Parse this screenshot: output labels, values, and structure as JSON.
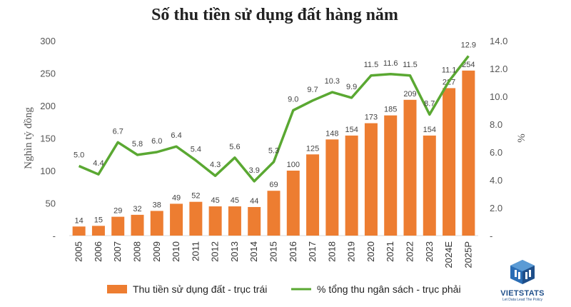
{
  "title": "Số thu tiền sử dụng đất hàng năm",
  "brand": {
    "name": "VIETSTATS",
    "tagline": "Let Data Lead The Policy",
    "color": "#1f4f8a"
  },
  "colors": {
    "bar": "#ed7d31",
    "line": "#5aa832"
  },
  "chart_data": {
    "type": "bar+line",
    "title": "Số thu tiền sử dụng đất hàng năm",
    "categories": [
      "2005",
      "2006",
      "2007",
      "2008",
      "2009",
      "2010",
      "2011",
      "2012",
      "2013",
      "2014",
      "2015",
      "2016",
      "2017",
      "2018",
      "2019",
      "2020",
      "2021",
      "2022",
      "2023",
      "2024E",
      "2025P"
    ],
    "series": [
      {
        "name": "Thu tiền sử dụng đất - trục trái",
        "type": "bar",
        "axis": "left",
        "values": [
          14,
          15,
          29,
          32,
          38,
          49,
          52,
          45,
          45,
          44,
          69,
          100,
          125,
          148,
          154,
          173,
          185,
          209,
          154,
          227,
          254
        ],
        "labels": [
          "14",
          "15",
          "29",
          "32",
          "38",
          "49",
          "52",
          "45",
          "45",
          "44",
          "69",
          "100",
          "125",
          "148",
          "154",
          "173",
          "185",
          "209",
          "154",
          "227",
          "254"
        ]
      },
      {
        "name": "% tổng thu ngân sách - trục phải",
        "type": "line",
        "axis": "right",
        "values": [
          5.0,
          4.4,
          6.7,
          5.8,
          6.0,
          6.4,
          5.4,
          4.3,
          5.6,
          3.9,
          5.3,
          9.0,
          9.7,
          10.3,
          9.9,
          11.5,
          11.6,
          11.5,
          8.7,
          11.1,
          12.9
        ],
        "labels": [
          "5.0",
          "4.4",
          "6.7",
          "5.8",
          "6.0",
          "6.4",
          "5.4",
          "4.3",
          "5.6",
          "3.9",
          "5.3",
          "9.0",
          "9.7",
          "10.3",
          "9.9",
          "11.5",
          "11.6",
          "11.5",
          "8.7",
          "11.1",
          "12.9"
        ]
      }
    ],
    "yleft": {
      "label": "Nghìn tỷ đồng",
      "lim": [
        0,
        300
      ],
      "ticks": [
        "-",
        "50",
        "100",
        "150",
        "200",
        "250",
        "300"
      ]
    },
    "yright": {
      "label": "%",
      "lim": [
        0,
        14
      ],
      "ticks": [
        "-",
        "2.0",
        "4.0",
        "6.0",
        "8.0",
        "10.0",
        "12.0",
        "14.0"
      ]
    },
    "grid": false,
    "legend_position": "bottom"
  }
}
